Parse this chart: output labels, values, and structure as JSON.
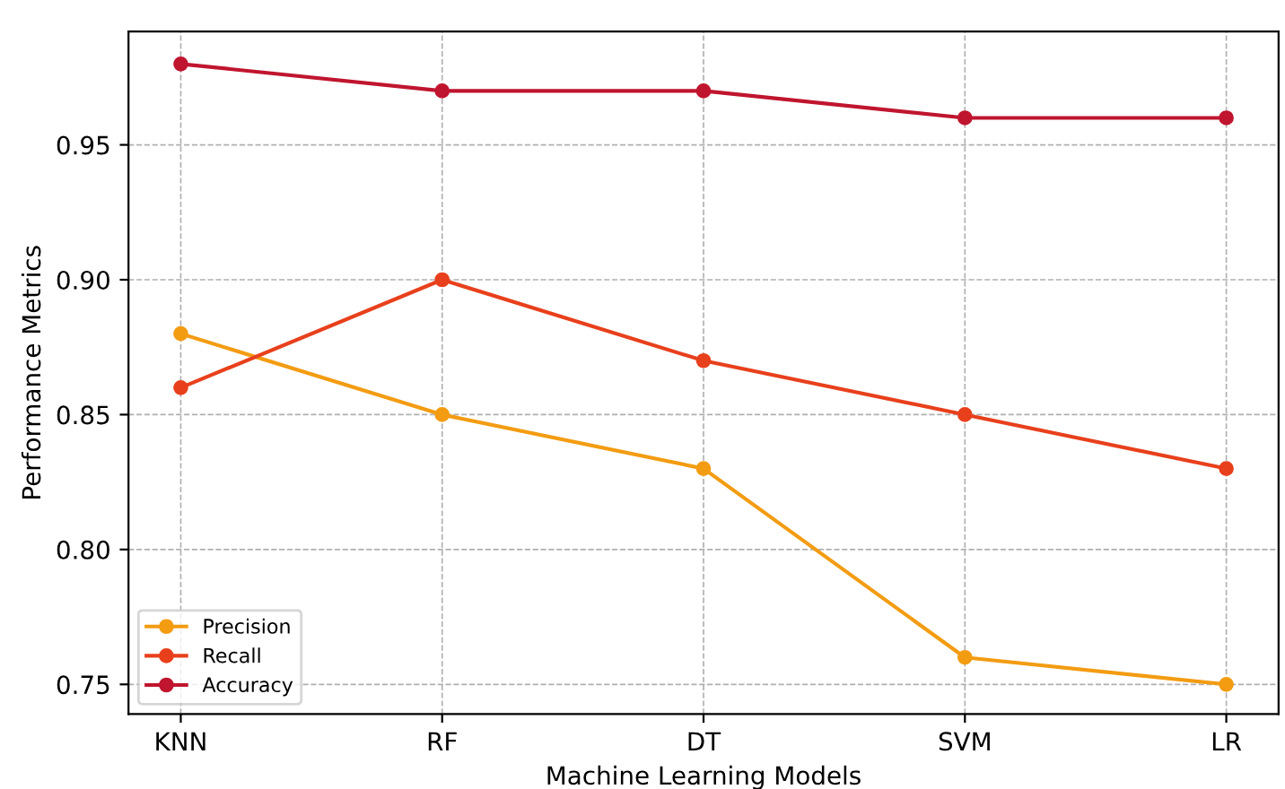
{
  "chart_data": {
    "type": "line",
    "xlabel": "Machine Learning Models",
    "ylabel": "Performance Metrics",
    "categories": [
      "KNN",
      "RF",
      "DT",
      "SVM",
      "LR"
    ],
    "series": [
      {
        "name": "Precision",
        "color": "#f39c12",
        "values": [
          0.88,
          0.85,
          0.83,
          0.76,
          0.75
        ]
      },
      {
        "name": "Recall",
        "color": "#e8401c",
        "values": [
          0.86,
          0.9,
          0.87,
          0.85,
          0.83
        ]
      },
      {
        "name": "Accuracy",
        "color": "#c0152f",
        "values": [
          0.98,
          0.97,
          0.97,
          0.96,
          0.96
        ]
      }
    ],
    "ylim": [
      0.739,
      0.992
    ],
    "yticks": [
      0.75,
      {
        "value": 0.8,
        "label": "0.80"
      },
      0.85,
      {
        "value": 0.9,
        "label": "0.90"
      },
      0.95
    ],
    "grid": true,
    "legend": "bottom left",
    "marker": "circle",
    "line_style": "solid"
  }
}
